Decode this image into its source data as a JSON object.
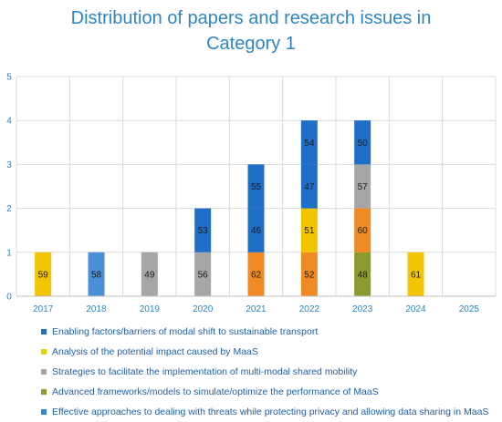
{
  "chart_data": {
    "type": "bar",
    "stacked": true,
    "title_lines": [
      "Distribution of papers and research issues in",
      "Category 1"
    ],
    "categories": [
      "2017",
      "2018",
      "2019",
      "2020",
      "2021",
      "2022",
      "2023",
      "2024",
      "2025"
    ],
    "ylim": [
      0,
      5
    ],
    "yticks": [
      "0",
      "1",
      "2",
      "3",
      "4",
      "5"
    ],
    "grid": true,
    "legend_position": "bottom",
    "legend": [
      {
        "label": "Enabling factors/barriers of modal shift to sustainable transport",
        "color": "#1F6FC8"
      },
      {
        "label": "Analysis of the potential impact caused by MaaS",
        "color": "#E8D400"
      },
      {
        "label": "Strategies to facilitate the implementation of multi-modal shared mobility",
        "color": "#A6A6A6"
      },
      {
        "label": "Advanced frameworks/models to simulate/optimize the performance of MaaS",
        "color": "#8C9A2E"
      },
      {
        "label": "Effective approaches to dealing with threats while protecting privacy and allowing data sharing in MaaS",
        "color": "#2E86D8"
      }
    ],
    "segments": [
      {
        "category": "2017",
        "y0": 0,
        "y1": 1,
        "color": "#F2C500",
        "label": "59"
      },
      {
        "category": "2018",
        "y0": 0,
        "y1": 1,
        "color": "#4A90D9",
        "label": "58"
      },
      {
        "category": "2019",
        "y0": 0,
        "y1": 1,
        "color": "#A6A6A6",
        "label": "49"
      },
      {
        "category": "2020",
        "y0": 0,
        "y1": 1,
        "color": "#A6A6A6",
        "label": "56"
      },
      {
        "category": "2020",
        "y0": 1,
        "y1": 2,
        "color": "#1F6FC8",
        "label": "53"
      },
      {
        "category": "2021",
        "y0": 0,
        "y1": 1,
        "color": "#F08A24",
        "label": "62"
      },
      {
        "category": "2021",
        "y0": 1,
        "y1": 2,
        "color": "#1F6FC8",
        "label": "46"
      },
      {
        "category": "2021",
        "y0": 2,
        "y1": 3,
        "color": "#1F6FC8",
        "label": "55"
      },
      {
        "category": "2022",
        "y0": 0,
        "y1": 1,
        "color": "#F08A24",
        "label": "52"
      },
      {
        "category": "2022",
        "y0": 1,
        "y1": 2,
        "color": "#F2C500",
        "label": "51"
      },
      {
        "category": "2022",
        "y0": 2,
        "y1": 3,
        "color": "#1F6FC8",
        "label": "47"
      },
      {
        "category": "2022",
        "y0": 3,
        "y1": 4,
        "color": "#1F6FC8",
        "label": "54"
      },
      {
        "category": "2023",
        "y0": 0,
        "y1": 1,
        "color": "#8C9A2E",
        "label": "48"
      },
      {
        "category": "2023",
        "y0": 1,
        "y1": 2,
        "color": "#F08A24",
        "label": "60"
      },
      {
        "category": "2023",
        "y0": 2,
        "y1": 3,
        "color": "#A6A6A6",
        "label": "57"
      },
      {
        "category": "2023",
        "y0": 3,
        "y1": 4,
        "color": "#1F6FC8",
        "label": "50"
      },
      {
        "category": "2024",
        "y0": 0,
        "y1": 1,
        "color": "#F2C500",
        "label": "61"
      }
    ]
  }
}
